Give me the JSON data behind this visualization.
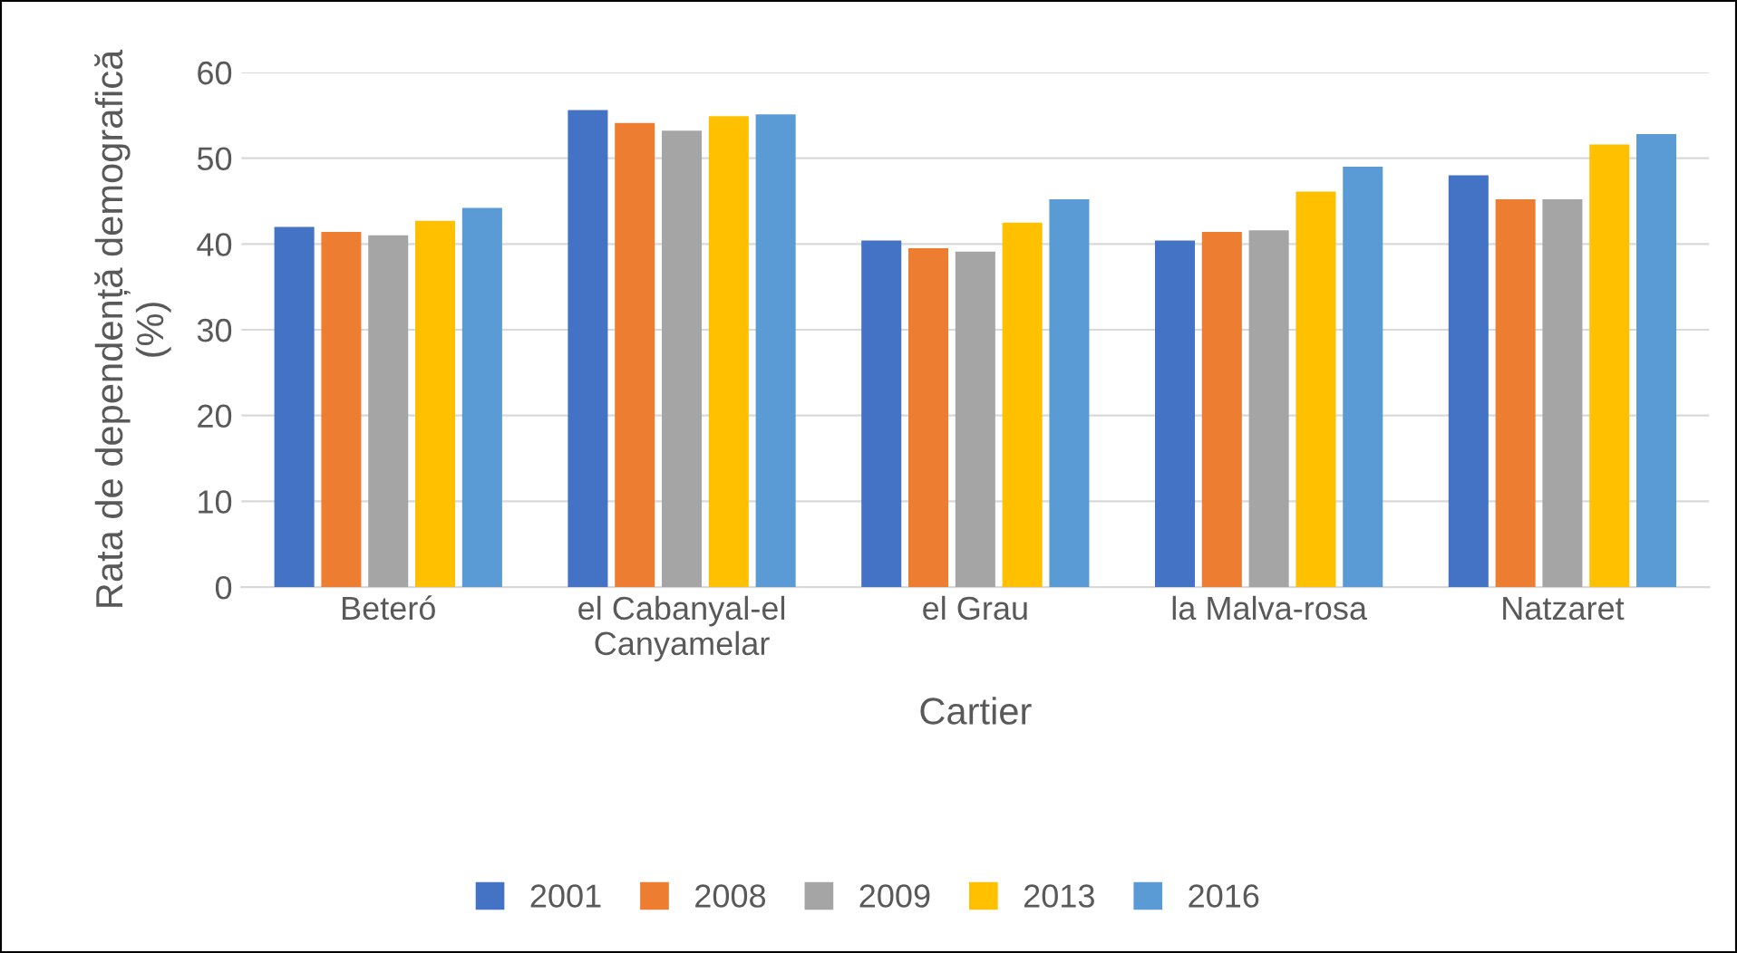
{
  "chart_data": {
    "type": "bar",
    "xlabel": "Cartier",
    "ylabel": "Rata de dependență demografică\n(%)",
    "categories": [
      "Beteró",
      "el Cabanyal-el\nCanyamelar",
      "el Grau",
      "la Malva-rosa",
      "Natzaret"
    ],
    "series": [
      {
        "name": "2001",
        "color": "#4472c4",
        "values": [
          42.0,
          55.6,
          40.4,
          40.4,
          48.0
        ]
      },
      {
        "name": "2008",
        "color": "#ed7d31",
        "values": [
          41.4,
          54.1,
          39.5,
          41.4,
          45.2
        ]
      },
      {
        "name": "2009",
        "color": "#a5a5a5",
        "values": [
          41.0,
          53.2,
          39.1,
          41.6,
          45.2
        ]
      },
      {
        "name": "2013",
        "color": "#ffc000",
        "values": [
          42.7,
          54.9,
          42.5,
          46.1,
          51.6
        ]
      },
      {
        "name": "2016",
        "color": "#5b9bd5",
        "values": [
          44.2,
          55.1,
          45.2,
          49.0,
          52.8
        ]
      }
    ],
    "ylim": [
      0,
      60
    ],
    "yticks": [
      0,
      10,
      20,
      30,
      40,
      50,
      60
    ],
    "grid": "y",
    "legend": "bottom"
  }
}
